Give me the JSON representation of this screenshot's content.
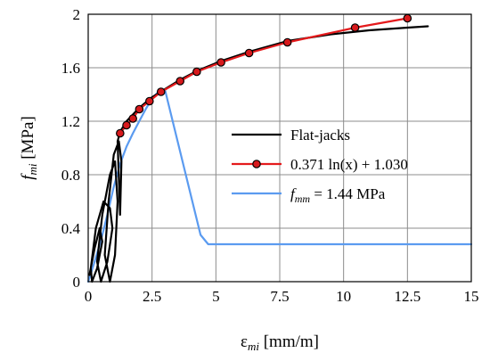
{
  "chart_data": {
    "type": "line",
    "xlabel": {
      "symbol": "ε",
      "subscript": "mi",
      "unit": " [mm/m]"
    },
    "ylabel": {
      "symbol": "f",
      "subscript": "mi",
      "unit": " [MPa]"
    },
    "xlim": [
      0,
      15
    ],
    "ylim": [
      0,
      2
    ],
    "xticks": [
      "0",
      "2.5",
      "5",
      "7.5",
      "10",
      "12.5",
      "15"
    ],
    "yticks": [
      "0",
      "0.4",
      "0.8",
      "1.2",
      "1.6",
      "2"
    ],
    "grid": true,
    "legend_position": "right-center",
    "colors": {
      "flat_jacks": "#000000",
      "fit": "#e41a1c",
      "marker_fill": "#d7191c",
      "fmm": "#5b9bf0"
    },
    "series": [
      {
        "name": "Flat-jacks",
        "x": [
          0.05,
          0.25,
          0.45,
          0.55,
          0.35,
          0.15,
          0.1,
          0.3,
          0.6,
          0.85,
          0.95,
          0.75,
          0.5,
          0.35,
          0.55,
          0.85,
          1.05,
          1.15,
          1.05,
          0.85,
          0.65,
          0.8,
          1.0,
          1.2,
          1.3,
          1.25,
          1.15,
          1.25,
          1.5,
          2.0,
          2.5,
          3.0,
          3.6,
          4.3,
          5.2,
          6.3,
          7.8,
          9.5,
          11.0,
          12.5,
          13.3
        ],
        "y": [
          0.05,
          0.25,
          0.4,
          0.3,
          0.1,
          0.0,
          0.1,
          0.4,
          0.6,
          0.55,
          0.4,
          0.15,
          0.0,
          0.15,
          0.5,
          0.8,
          0.9,
          0.6,
          0.2,
          0.0,
          0.2,
          0.6,
          0.95,
          1.05,
          0.9,
          0.5,
          1.05,
          1.12,
          1.2,
          1.3,
          1.38,
          1.44,
          1.51,
          1.58,
          1.65,
          1.72,
          1.8,
          1.85,
          1.88,
          1.9,
          1.91
        ]
      },
      {
        "name": "0.371 ln(x) + 1.030",
        "x": [
          1.25,
          1.5,
          1.75,
          2.0,
          2.4,
          2.85,
          3.6,
          4.25,
          5.2,
          6.3,
          7.8,
          10.45,
          12.5
        ],
        "y": [
          1.11,
          1.17,
          1.22,
          1.29,
          1.35,
          1.42,
          1.5,
          1.57,
          1.64,
          1.71,
          1.79,
          1.9,
          1.97
        ],
        "markers": true
      },
      {
        "name": "1.44 MPa",
        "label_prefix_symbol": "f",
        "label_prefix_subscript": "mm",
        "x": [
          0,
          0.25,
          0.5,
          0.75,
          1.0,
          1.25,
          1.5,
          1.75,
          2.0,
          2.25,
          2.5,
          2.75,
          3.0,
          4.4,
          4.7,
          15
        ],
        "y": [
          0,
          0.15,
          0.31,
          0.5,
          0.71,
          0.88,
          1.01,
          1.11,
          1.2,
          1.29,
          1.37,
          1.42,
          1.44,
          0.35,
          0.28,
          0.28
        ]
      }
    ],
    "legend": [
      {
        "series": 0,
        "text": "Flat-jacks"
      },
      {
        "series": 1,
        "text": "0.371 ln(x) + 1.030"
      },
      {
        "series": 2,
        "symbol": "f",
        "subscript": "mm",
        "text": " = 1.44 MPa"
      }
    ]
  }
}
